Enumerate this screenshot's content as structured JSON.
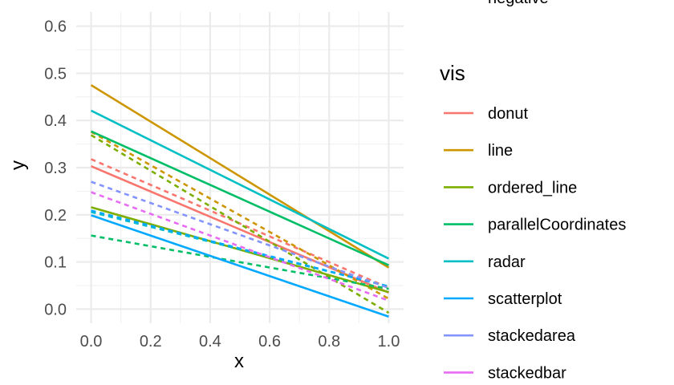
{
  "chart_data": {
    "type": "line",
    "xlabel": "x",
    "ylabel": "y",
    "xlim": [
      -0.05,
      1.05
    ],
    "ylim": [
      -0.03,
      0.63
    ],
    "x_ticks": [
      0.0,
      0.2,
      0.4,
      0.6,
      0.8,
      1.0
    ],
    "x_tick_labels": [
      "0.0",
      "0.2",
      "0.4",
      "0.6",
      "0.8",
      "1.0"
    ],
    "y_ticks": [
      0.0,
      0.1,
      0.2,
      0.3,
      0.4,
      0.5,
      0.6
    ],
    "y_tick_labels": [
      "0.0",
      "0.1",
      "0.2",
      "0.3",
      "0.4",
      "0.5",
      "0.6"
    ],
    "grid": true,
    "legend_position": "right",
    "legend_title": "vis",
    "legend_partial_text": "negative",
    "series": [
      {
        "name": "donut",
        "color": "#F8766D",
        "solid": [
          [
            0,
            0.303
          ],
          [
            1,
            0.035
          ]
        ],
        "dashed": [
          [
            0,
            0.318
          ],
          [
            1,
            0.045
          ]
        ]
      },
      {
        "name": "line",
        "color": "#CD9600",
        "solid": [
          [
            0,
            0.475
          ],
          [
            1,
            0.088
          ]
        ],
        "dashed": [
          [
            0,
            0.376
          ],
          [
            1,
            0.022
          ]
        ]
      },
      {
        "name": "ordered_line",
        "color": "#7CAE00",
        "solid": [
          [
            0,
            0.216
          ],
          [
            1,
            0.036
          ]
        ],
        "dashed": [
          [
            0,
            0.369
          ],
          [
            1,
            -0.008
          ]
        ]
      },
      {
        "name": "parallelCoordinates",
        "color": "#00BE67",
        "solid": [
          [
            0,
            0.377
          ],
          [
            1,
            0.093
          ]
        ],
        "dashed": [
          [
            0,
            0.156
          ],
          [
            1,
            0.043
          ]
        ]
      },
      {
        "name": "radar",
        "color": "#00BFC4",
        "solid": [
          [
            0,
            0.421
          ],
          [
            1,
            0.107
          ]
        ],
        "dashed": [
          [
            0,
            0.206
          ],
          [
            1,
            0.048
          ]
        ]
      },
      {
        "name": "scatterplot",
        "color": "#00A9FF",
        "solid": [
          [
            0,
            0.199
          ],
          [
            1,
            -0.016
          ]
        ],
        "dashed": [
          [
            0,
            0.209
          ],
          [
            1,
            0.048
          ]
        ]
      },
      {
        "name": "stackedarea",
        "color": "#8494FF",
        "solid": [],
        "dashed": [
          [
            0,
            0.27
          ],
          [
            1,
            0.045
          ]
        ]
      },
      {
        "name": "stackedbar",
        "color": "#E76BF3",
        "solid": [],
        "dashed": [
          [
            0,
            0.248
          ],
          [
            1,
            0.018
          ]
        ]
      }
    ]
  }
}
